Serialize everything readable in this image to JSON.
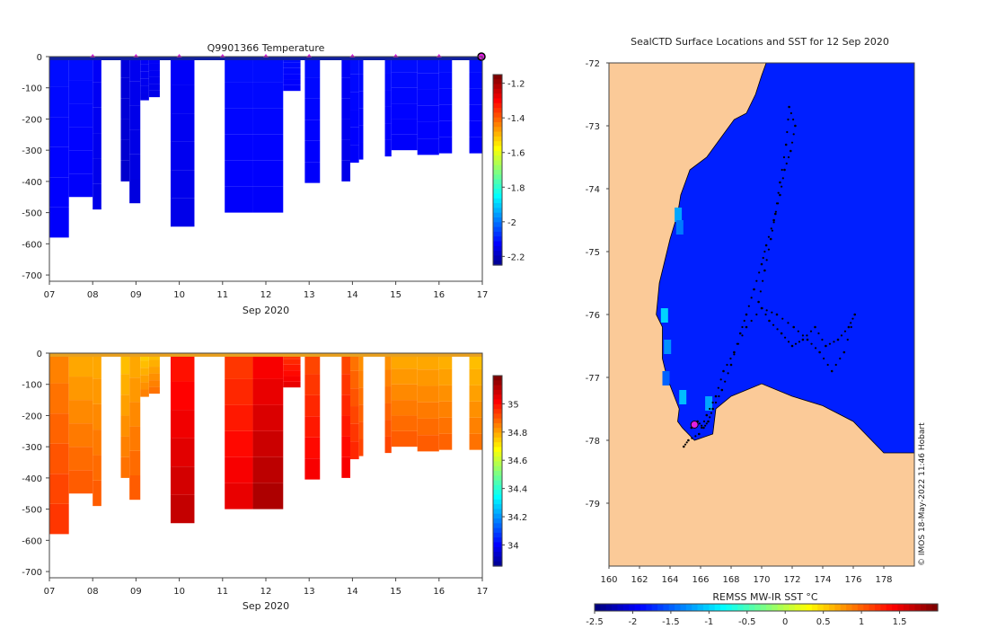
{
  "chart_data": [
    {
      "type": "heatmap",
      "id": "temperature",
      "title": "Q9901366  Temperature",
      "xlabel": "Sep 2020",
      "xtick_labels": [
        "07",
        "08",
        "09",
        "10",
        "11",
        "12",
        "13",
        "14",
        "15",
        "16",
        "17"
      ],
      "xlim": [
        7,
        17
      ],
      "ylim": [
        -720,
        0
      ],
      "ytick_labels": [
        "0",
        "-100",
        "-200",
        "-300",
        "-400",
        "-500",
        "-600",
        "-700"
      ],
      "colorbar": {
        "min": -2.25,
        "max": -1.15,
        "tick_labels": [
          "-1.2",
          "-1.4",
          "-1.6",
          "-1.8",
          "-2",
          "-2.2"
        ],
        "ticks": [
          -1.2,
          -1.4,
          -1.6,
          -1.8,
          -2.0,
          -2.2
        ]
      },
      "profile_marker_days": [
        8,
        9,
        10,
        11,
        12,
        13,
        14,
        15,
        16
      ],
      "profiles": [
        {
          "start": 7.0,
          "end": 7.45,
          "depth": 580,
          "value": -2.1
        },
        {
          "start": 7.45,
          "end": 8.0,
          "depth": 450,
          "value": -2.1
        },
        {
          "start": 8.0,
          "end": 8.2,
          "depth": 490,
          "value": -2.12
        },
        {
          "start": 8.65,
          "end": 8.85,
          "depth": 400,
          "value": -2.15
        },
        {
          "start": 8.85,
          "end": 9.1,
          "depth": 470,
          "value": -2.13
        },
        {
          "start": 9.1,
          "end": 9.3,
          "depth": 140,
          "value": -2.12
        },
        {
          "start": 9.3,
          "end": 9.55,
          "depth": 130,
          "value": -2.12
        },
        {
          "start": 9.8,
          "end": 10.35,
          "depth": 545,
          "value": -2.12
        },
        {
          "start": 11.05,
          "end": 11.7,
          "depth": 500,
          "value": -2.1
        },
        {
          "start": 11.7,
          "end": 12.4,
          "depth": 500,
          "value": -2.1
        },
        {
          "start": 12.4,
          "end": 12.8,
          "depth": 110,
          "value": -2.1
        },
        {
          "start": 12.9,
          "end": 13.25,
          "depth": 405,
          "value": -2.1
        },
        {
          "start": 13.75,
          "end": 13.95,
          "depth": 400,
          "value": -2.12
        },
        {
          "start": 13.95,
          "end": 14.15,
          "depth": 340,
          "value": -2.1
        },
        {
          "start": 14.15,
          "end": 14.25,
          "depth": 330,
          "value": -2.1
        },
        {
          "start": 14.75,
          "end": 14.9,
          "depth": 320,
          "value": -2.1
        },
        {
          "start": 14.9,
          "end": 15.5,
          "depth": 300,
          "value": -2.1
        },
        {
          "start": 15.5,
          "end": 16.0,
          "depth": 315,
          "value": -2.1
        },
        {
          "start": 16.0,
          "end": 16.3,
          "depth": 310,
          "value": -2.1
        },
        {
          "start": 16.7,
          "end": 17.0,
          "depth": 310,
          "value": -2.1
        }
      ]
    },
    {
      "type": "heatmap",
      "id": "salinity",
      "xlabel": "Sep 2020",
      "xtick_labels": [
        "07",
        "08",
        "09",
        "10",
        "11",
        "12",
        "13",
        "14",
        "15",
        "16",
        "17"
      ],
      "xlim": [
        7,
        17
      ],
      "ylim": [
        -720,
        0
      ],
      "ytick_labels": [
        "0",
        "-100",
        "-200",
        "-300",
        "-400",
        "-500",
        "-600",
        "-700"
      ],
      "colorbar": {
        "min": 33.85,
        "max": 35.2,
        "tick_labels": [
          "35",
          "34.8",
          "34.6",
          "34.4",
          "34.2",
          "34"
        ],
        "ticks": [
          35,
          34.8,
          34.6,
          34.4,
          34.2,
          34
        ]
      },
      "profiles": [
        {
          "start": 7.0,
          "end": 7.45,
          "depth": 580,
          "value": 34.9
        },
        {
          "start": 7.45,
          "end": 8.0,
          "depth": 450,
          "value": 34.85
        },
        {
          "start": 8.0,
          "end": 8.2,
          "depth": 490,
          "value": 34.85
        },
        {
          "start": 8.65,
          "end": 8.85,
          "depth": 400,
          "value": 34.82
        },
        {
          "start": 8.85,
          "end": 9.1,
          "depth": 470,
          "value": 34.85
        },
        {
          "start": 9.1,
          "end": 9.3,
          "depth": 140,
          "value": 34.8
        },
        {
          "start": 9.3,
          "end": 9.55,
          "depth": 130,
          "value": 34.82
        },
        {
          "start": 9.8,
          "end": 10.35,
          "depth": 545,
          "value": 35.05
        },
        {
          "start": 11.05,
          "end": 11.7,
          "depth": 500,
          "value": 35.0
        },
        {
          "start": 11.7,
          "end": 12.4,
          "depth": 500,
          "value": 35.08
        },
        {
          "start": 12.4,
          "end": 12.8,
          "depth": 110,
          "value": 35.0
        },
        {
          "start": 12.9,
          "end": 13.25,
          "depth": 405,
          "value": 34.98
        },
        {
          "start": 13.75,
          "end": 13.95,
          "depth": 400,
          "value": 34.98
        },
        {
          "start": 13.95,
          "end": 14.15,
          "depth": 340,
          "value": 34.92
        },
        {
          "start": 14.15,
          "end": 14.25,
          "depth": 330,
          "value": 34.88
        },
        {
          "start": 14.75,
          "end": 14.9,
          "depth": 320,
          "value": 34.88
        },
        {
          "start": 14.9,
          "end": 15.5,
          "depth": 300,
          "value": 34.85
        },
        {
          "start": 15.5,
          "end": 16.0,
          "depth": 315,
          "value": 34.85
        },
        {
          "start": 16.0,
          "end": 16.3,
          "depth": 310,
          "value": 34.84
        },
        {
          "start": 16.7,
          "end": 17.0,
          "depth": 310,
          "value": 34.82
        }
      ]
    },
    {
      "type": "map",
      "id": "sst-map",
      "title": "SealCTD Surface Locations and SST for 12 Sep 2020",
      "xlim": [
        160,
        180
      ],
      "ylim": [
        -80,
        -72
      ],
      "xtick_labels": [
        "160",
        "162",
        "164",
        "166",
        "168",
        "170",
        "172",
        "174",
        "176",
        "178"
      ],
      "ytick_labels": [
        "-72",
        "-73",
        "-74",
        "-75",
        "-76",
        "-77",
        "-78",
        "-79"
      ],
      "colorbar_label": "REMSS MW-IR SST °C",
      "colorbar": {
        "min": -2.5,
        "max": 2.0,
        "tick_labels": [
          "-2.5",
          "-2",
          "-1.5",
          "-1",
          "-0.5",
          "0",
          "0.5",
          "1",
          "1.5"
        ],
        "ticks": [
          -2.5,
          -2,
          -1.5,
          -1,
          -0.5,
          0,
          0.5,
          1,
          1.5
        ]
      },
      "ocean_sst": -1.8,
      "coast_sst_cells": [
        {
          "lon": 164.3,
          "lat": -74.3,
          "sst": -1.2
        },
        {
          "lon": 164.4,
          "lat": -74.5,
          "sst": -1.4
        },
        {
          "lon": 163.4,
          "lat": -75.9,
          "sst": -1.0
        },
        {
          "lon": 163.6,
          "lat": -76.4,
          "sst": -1.3
        },
        {
          "lon": 163.5,
          "lat": -76.9,
          "sst": -1.5
        },
        {
          "lon": 164.6,
          "lat": -77.2,
          "sst": -1.1
        },
        {
          "lon": 166.3,
          "lat": -77.3,
          "sst": -1.2
        }
      ],
      "track": [
        [
          165.4,
          -77.8
        ],
        [
          165.8,
          -77.7
        ],
        [
          166.2,
          -77.8
        ],
        [
          166.5,
          -77.7
        ],
        [
          166.8,
          -77.5
        ],
        [
          167.4,
          -77.2
        ],
        [
          168.0,
          -76.8
        ],
        [
          168.6,
          -76.3
        ],
        [
          169.0,
          -76.0
        ],
        [
          169.5,
          -75.6
        ],
        [
          170.0,
          -75.2
        ],
        [
          170.3,
          -74.9
        ],
        [
          170.8,
          -74.5
        ],
        [
          171.2,
          -74.1
        ],
        [
          171.5,
          -73.7
        ],
        [
          171.9,
          -73.4
        ],
        [
          172.2,
          -73.0
        ],
        [
          171.8,
          -72.7
        ],
        [
          171.6,
          -73.3
        ],
        [
          171.2,
          -73.9
        ],
        [
          170.9,
          -74.4
        ],
        [
          170.6,
          -74.8
        ],
        [
          170.2,
          -75.3
        ],
        [
          169.8,
          -75.8
        ],
        [
          170.5,
          -76.1
        ],
        [
          171.3,
          -76.3
        ],
        [
          172.0,
          -76.5
        ],
        [
          172.7,
          -76.4
        ],
        [
          173.5,
          -76.2
        ],
        [
          174.2,
          -76.5
        ],
        [
          175.0,
          -76.4
        ],
        [
          175.7,
          -76.2
        ],
        [
          176.1,
          -76.0
        ],
        [
          175.4,
          -76.6
        ],
        [
          174.6,
          -76.9
        ],
        [
          173.8,
          -76.6
        ],
        [
          173.0,
          -76.4
        ],
        [
          172.1,
          -76.2
        ],
        [
          171.0,
          -76.0
        ],
        [
          170.0,
          -75.9
        ],
        [
          169.0,
          -76.2
        ],
        [
          168.2,
          -76.6
        ],
        [
          167.5,
          -76.9
        ],
        [
          167.0,
          -77.3
        ],
        [
          166.4,
          -77.6
        ],
        [
          165.9,
          -77.9
        ],
        [
          165.2,
          -78.0
        ],
        [
          164.9,
          -78.1
        ]
      ],
      "current_position": {
        "lon": 165.6,
        "lat": -77.75
      },
      "watermark": "© IMOS 18-May-2022 11:46 Hobart"
    }
  ]
}
